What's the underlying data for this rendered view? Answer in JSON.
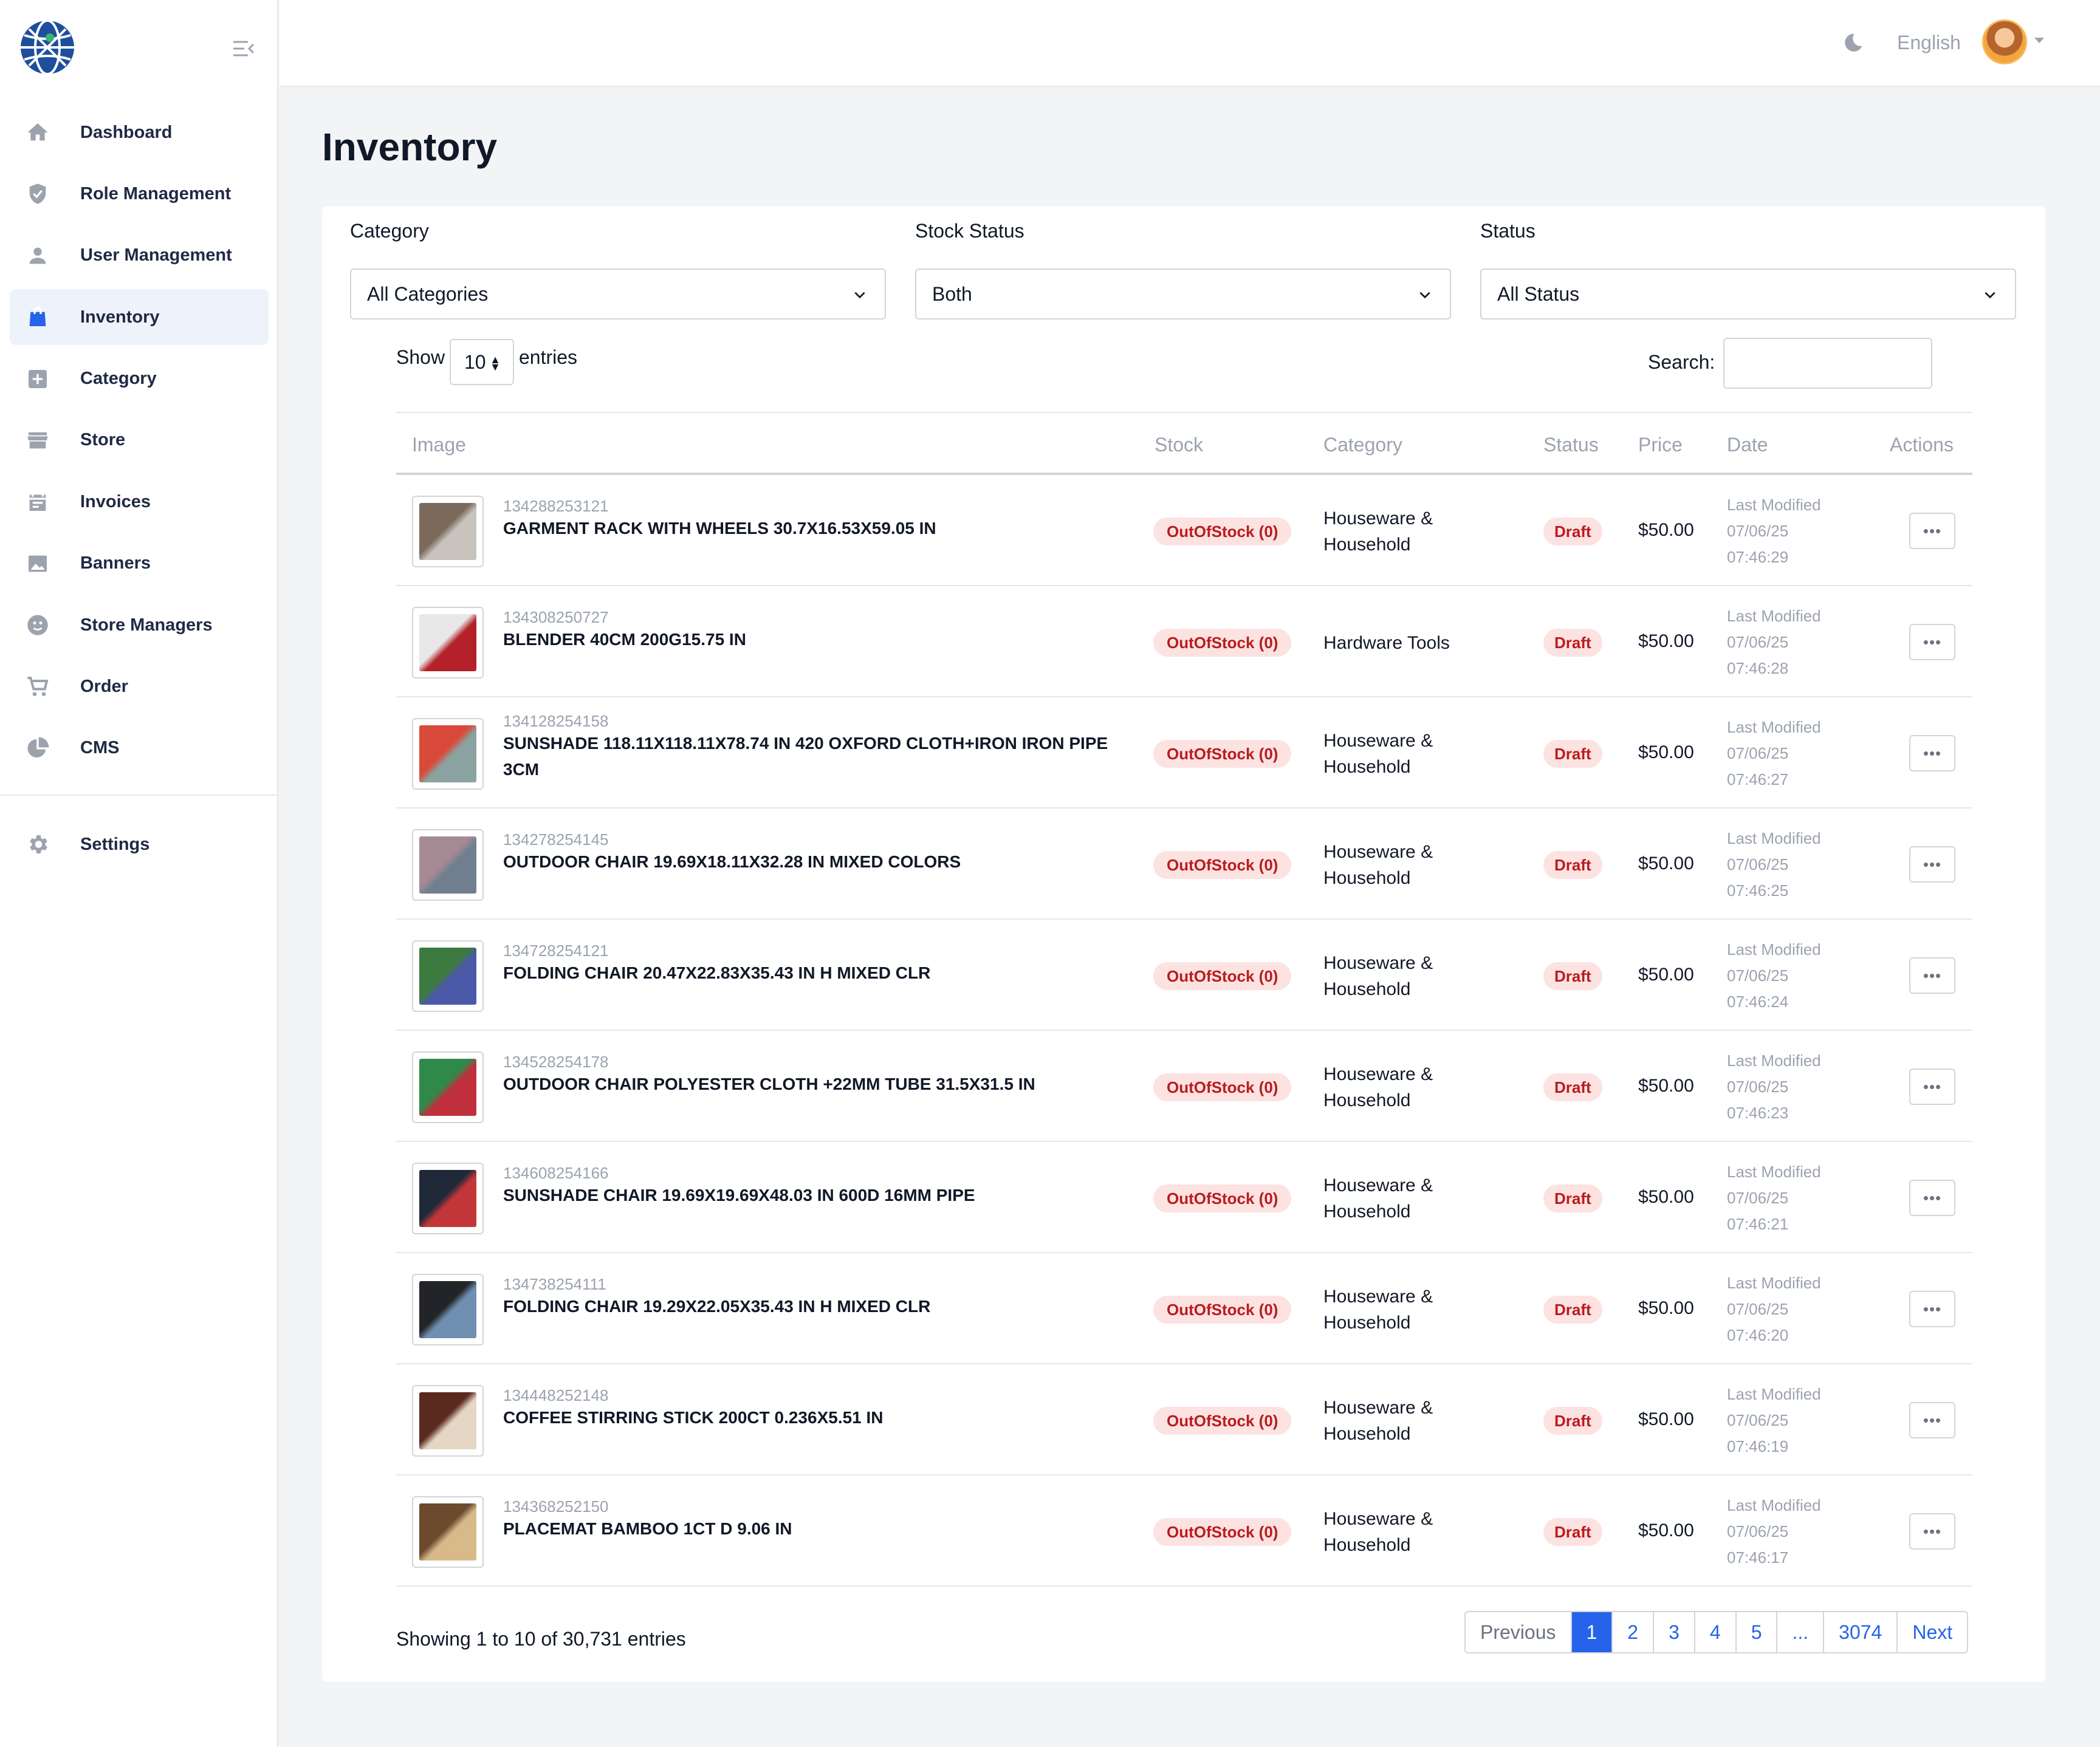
{
  "sidebar": {
    "items": [
      {
        "label": "Dashboard",
        "icon": "home-icon"
      },
      {
        "label": "Role Management",
        "icon": "shield-icon"
      },
      {
        "label": "User Management",
        "icon": "user-icon"
      },
      {
        "label": "Inventory",
        "icon": "shopping-bag-icon",
        "active": true
      },
      {
        "label": "Category",
        "icon": "plus-square-icon"
      },
      {
        "label": "Store",
        "icon": "store-icon"
      },
      {
        "label": "Invoices",
        "icon": "calendar-icon"
      },
      {
        "label": "Banners",
        "icon": "image-icon"
      },
      {
        "label": "Store Managers",
        "icon": "face-icon"
      },
      {
        "label": "Order",
        "icon": "cart-icon"
      },
      {
        "label": "CMS",
        "icon": "pie-chart-icon"
      }
    ],
    "settings": {
      "label": "Settings",
      "icon": "gear-icon"
    }
  },
  "header": {
    "language": "English"
  },
  "page": {
    "title": "Inventory"
  },
  "filters": {
    "category": {
      "label": "Category",
      "value": "All Categories"
    },
    "stock_status": {
      "label": "Stock Status",
      "value": "Both"
    },
    "status": {
      "label": "Status",
      "value": "All Status"
    }
  },
  "table_controls": {
    "show_label": "Show",
    "entries_value": "10",
    "entries_label": "entries",
    "search_label": "Search:",
    "search_value": ""
  },
  "columns": {
    "image": "Image",
    "stock": "Stock",
    "category": "Category",
    "status": "Status",
    "price": "Price",
    "date": "Date",
    "actions": "Actions"
  },
  "rows": [
    {
      "sku": "134288253121",
      "name": "GARMENT RACK WITH WHEELS 30.7X16.53X59.05 IN",
      "stock": "OutOfStock (0)",
      "category": [
        "Houseware &",
        "Household"
      ],
      "status": "Draft",
      "price": "$50.00",
      "date_label": "Last Modified",
      "date": "07/06/25",
      "time": "07:46:29",
      "thumb": [
        "#7b6a5c",
        "#c9c3bd"
      ]
    },
    {
      "sku": "134308250727",
      "name": "BLENDER 40CM 200G15.75 IN",
      "stock": "OutOfStock (0)",
      "category": [
        "Hardware Tools",
        ""
      ],
      "status": "Draft",
      "price": "$50.00",
      "date_label": "Last Modified",
      "date": "07/06/25",
      "time": "07:46:28",
      "thumb": [
        "#e8e8e8",
        "#b3202a"
      ]
    },
    {
      "sku": "134128254158",
      "name": "SUNSHADE 118.11X118.11X78.74 IN 420 OXFORD CLOTH+IRON IRON PIPE 3CM",
      "stock": "OutOfStock (0)",
      "category": [
        "Houseware &",
        "Household"
      ],
      "status": "Draft",
      "price": "$50.00",
      "date_label": "Last Modified",
      "date": "07/06/25",
      "time": "07:46:27",
      "thumb": [
        "#d94a3a",
        "#8aa3a0"
      ]
    },
    {
      "sku": "134278254145",
      "name": "OUTDOOR CHAIR 19.69X18.11X32.28 IN MIXED COLORS",
      "stock": "OutOfStock (0)",
      "category": [
        "Houseware &",
        "Household"
      ],
      "status": "Draft",
      "price": "$50.00",
      "date_label": "Last Modified",
      "date": "07/06/25",
      "time": "07:46:25",
      "thumb": [
        "#a58a94",
        "#6f7f8f"
      ]
    },
    {
      "sku": "134728254121",
      "name": "FOLDING CHAIR 20.47X22.83X35.43 IN H MIXED CLR",
      "stock": "OutOfStock (0)",
      "category": [
        "Houseware &",
        "Household"
      ],
      "status": "Draft",
      "price": "$50.00",
      "date_label": "Last Modified",
      "date": "07/06/25",
      "time": "07:46:24",
      "thumb": [
        "#3d7a3f",
        "#4a5aa8"
      ]
    },
    {
      "sku": "134528254178",
      "name": "OUTDOOR CHAIR POLYESTER CLOTH +22MM TUBE 31.5X31.5 IN",
      "stock": "OutOfStock (0)",
      "category": [
        "Houseware &",
        "Household"
      ],
      "status": "Draft",
      "price": "$50.00",
      "date_label": "Last Modified",
      "date": "07/06/25",
      "time": "07:46:23",
      "thumb": [
        "#2f8a4a",
        "#c0303c"
      ]
    },
    {
      "sku": "134608254166",
      "name": "SUNSHADE CHAIR 19.69X19.69X48.03 IN 600D 16MM PIPE",
      "stock": "OutOfStock (0)",
      "category": [
        "Houseware &",
        "Household"
      ],
      "status": "Draft",
      "price": "$50.00",
      "date_label": "Last Modified",
      "date": "07/06/25",
      "time": "07:46:21",
      "thumb": [
        "#1f2937",
        "#c2363a"
      ]
    },
    {
      "sku": "134738254111",
      "name": "FOLDING CHAIR 19.29X22.05X35.43 IN H MIXED CLR",
      "stock": "OutOfStock (0)",
      "category": [
        "Houseware &",
        "Household"
      ],
      "status": "Draft",
      "price": "$50.00",
      "date_label": "Last Modified",
      "date": "07/06/25",
      "time": "07:46:20",
      "thumb": [
        "#222428",
        "#6f8fb0"
      ]
    },
    {
      "sku": "134448252148",
      "name": "COFFEE STIRRING STICK 200CT 0.236X5.51 IN",
      "stock": "OutOfStock (0)",
      "category": [
        "Houseware &",
        "Household"
      ],
      "status": "Draft",
      "price": "$50.00",
      "date_label": "Last Modified",
      "date": "07/06/25",
      "time": "07:46:19",
      "thumb": [
        "#5a2a1e",
        "#e6d6c6"
      ]
    },
    {
      "sku": "134368252150",
      "name": "PLACEMAT BAMBOO 1CT D 9.06 IN",
      "stock": "OutOfStock (0)",
      "category": [
        "Houseware &",
        "Household"
      ],
      "status": "Draft",
      "price": "$50.00",
      "date_label": "Last Modified",
      "date": "07/06/25",
      "time": "07:46:17",
      "thumb": [
        "#6b4a2e",
        "#d8b98a"
      ]
    }
  ],
  "footer": {
    "showing": "Showing 1 to 10 of 30,731 entries",
    "pagination": [
      "Previous",
      "1",
      "2",
      "3",
      "4",
      "5",
      "...",
      "3074",
      "Next"
    ],
    "active_page": "1"
  },
  "colors": {
    "accent": "#2563eb",
    "badge_bg": "#fde2e2",
    "badge_text": "#b91c1c",
    "active_nav_bg": "#eef2fb"
  }
}
